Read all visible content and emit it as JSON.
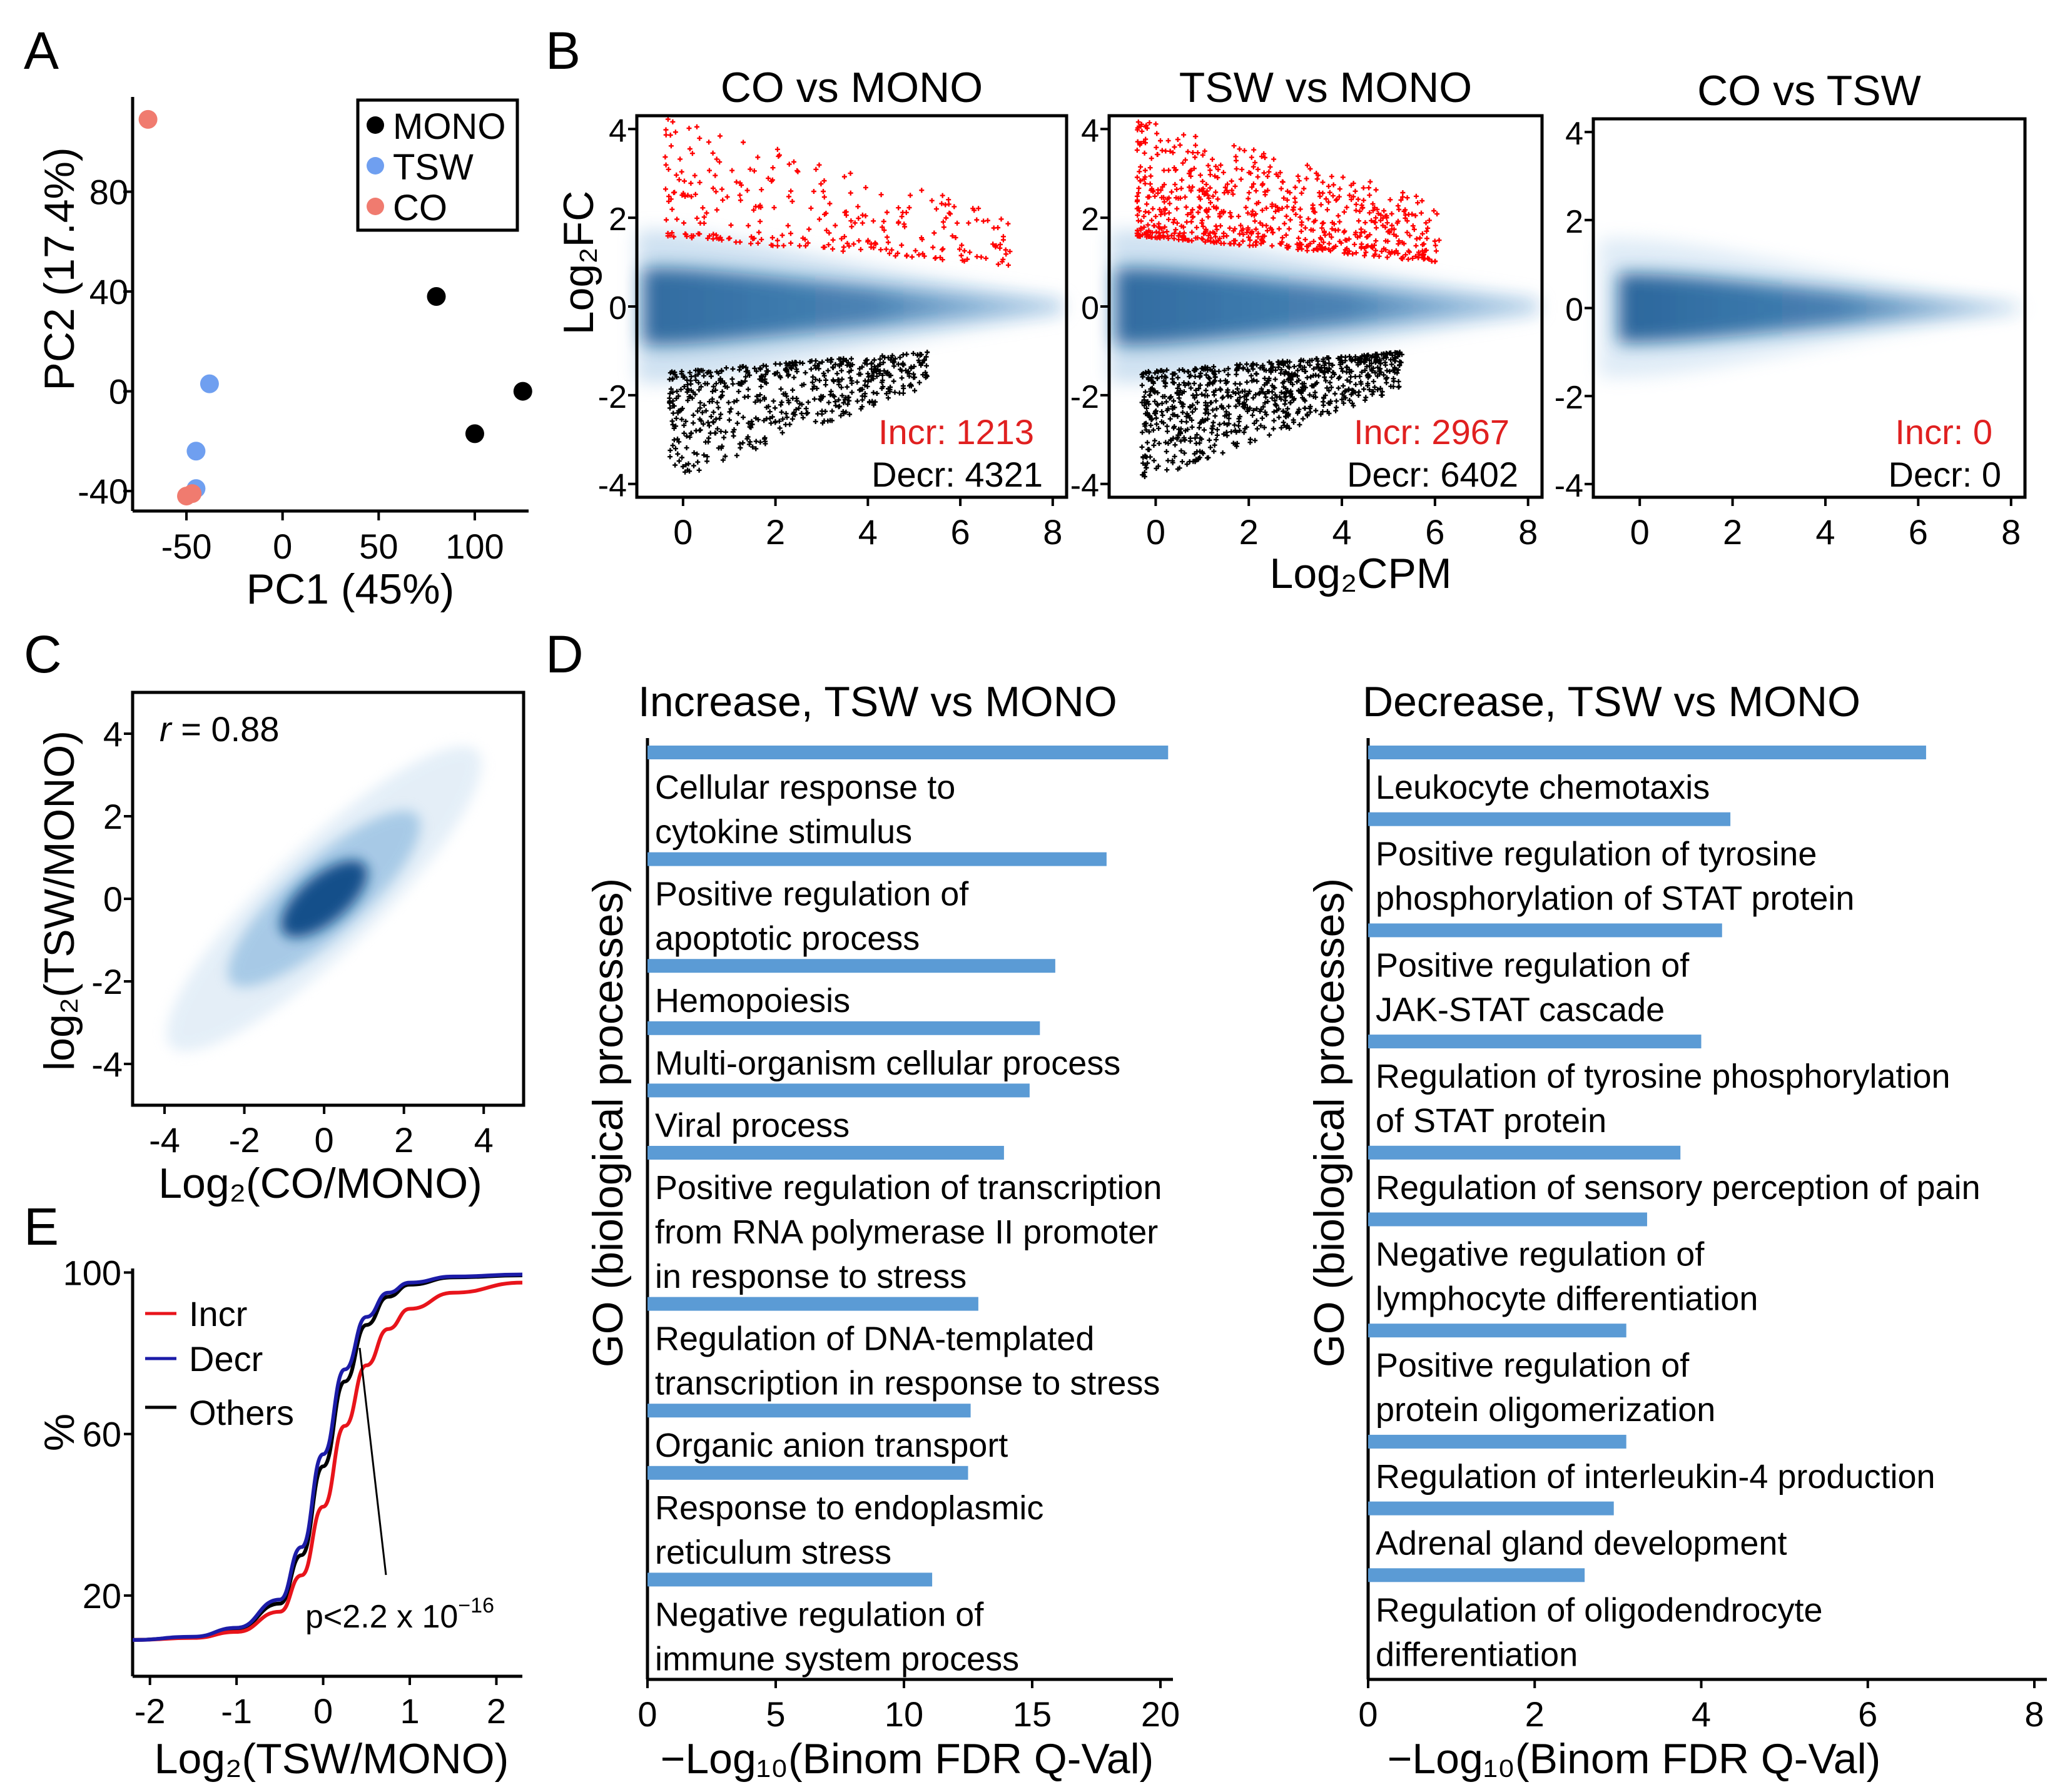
{
  "colors": {
    "mono": "#000000",
    "tsw": "#6f9ff0",
    "co": "#f07b6f",
    "incr": "#ff0000",
    "decr_pts": "#000000",
    "density": "#0a4f8a",
    "go_bar": "#5b9bd5",
    "curve_incr": "#e8141b",
    "curve_decr": "#1c1ca8",
    "incr_text": "#e02020"
  },
  "chart_data": [
    {
      "panel": "A",
      "type": "scatter",
      "xlabel": "PC1 (45%)",
      "ylabel": "PC2 (17.4%)",
      "xlim": [
        -78,
        128
      ],
      "ylim": [
        -48,
        118
      ],
      "xticks": [
        "-50",
        "0",
        "50",
        "100"
      ],
      "xtick_values": [
        -50,
        0,
        50,
        100
      ],
      "yticks": [
        "-40",
        "0",
        "40",
        "80"
      ],
      "ytick_values": [
        -40,
        0,
        40,
        80
      ],
      "legend": [
        "MONO",
        "TSW",
        "CO"
      ],
      "series": [
        {
          "name": "MONO",
          "points": [
            [
              80,
              38
            ],
            [
              125,
              0
            ],
            [
              100,
              -17
            ]
          ]
        },
        {
          "name": "TSW",
          "points": [
            [
              -38,
              3
            ],
            [
              -45,
              -24
            ],
            [
              -45,
              -39
            ]
          ]
        },
        {
          "name": "CO",
          "points": [
            [
              -70,
              109
            ],
            [
              -50,
              -42
            ],
            [
              -47,
              -41
            ]
          ]
        }
      ]
    },
    {
      "panel": "B",
      "type": "scatter",
      "xlabel": "Log₂CPM",
      "ylabel": "Log₂FC",
      "xlim": [
        -1,
        8.3
      ],
      "ylim": [
        -4.3,
        4.3
      ],
      "xticks": [
        "0",
        "2",
        "4",
        "6",
        "8"
      ],
      "xtick_values": [
        0,
        2,
        4,
        6,
        8
      ],
      "yticks": [
        "-4",
        "-2",
        "0",
        "2",
        "4"
      ],
      "ytick_values": [
        -4,
        -2,
        0,
        2,
        4
      ],
      "facets": [
        {
          "title": "CO vs MONO",
          "incr_label": "Incr: 1213",
          "decr_label": "Decr: 4321",
          "incr": 1213,
          "decr": 4321
        },
        {
          "title": "TSW vs MONO",
          "incr_label": "Incr: 2967",
          "decr_label": "Decr: 6402",
          "incr": 2967,
          "decr": 6402
        },
        {
          "title": "CO vs TSW",
          "incr_label": "Incr: 0",
          "decr_label": "Decr: 0",
          "incr": 0,
          "decr": 0
        }
      ]
    },
    {
      "panel": "C",
      "type": "heatmap",
      "annotation_r": "r",
      "annotation_val": "= 0.88",
      "r": 0.88,
      "xlabel": "Log₂(CO/MONO)",
      "ylabel": "log₂(TSW/MONO)",
      "xlim": [
        -4.8,
        5
      ],
      "ylim": [
        -5,
        5
      ],
      "xticks": [
        "-4",
        "-2",
        "0",
        "2",
        "4"
      ],
      "xtick_values": [
        -4,
        -2,
        0,
        2,
        4
      ],
      "yticks": [
        "-4",
        "-2",
        "0",
        "2",
        "4"
      ],
      "ytick_values": [
        -4,
        -2,
        0,
        2,
        4
      ]
    },
    {
      "panel": "D1",
      "type": "bar",
      "title": "Increase, TSW vs MONO",
      "ylabel": "GO (biological processes)",
      "xlabel": "−Log₁₀(Binom FDR Q-Val)",
      "xlim": [
        0,
        20
      ],
      "xticks": [
        "0",
        "5",
        "10",
        "15",
        "20"
      ],
      "xtick_values": [
        0,
        5,
        10,
        15,
        20
      ],
      "categories": [
        [
          "Cellular response to",
          "cytokine stimulus"
        ],
        [
          "Positive regulation of",
          "apoptotic process"
        ],
        [
          "Hemopoiesis"
        ],
        [
          "Multi-organism cellular process"
        ],
        [
          "Viral process"
        ],
        [
          "Positive regulation of transcription",
          "from RNA polymerase II promoter",
          "in response to stress"
        ],
        [
          "Regulation of DNA-templated",
          "transcription in response to stress"
        ],
        [
          "Organic anion transport"
        ],
        [
          "Response to endoplasmic",
          "reticulum stress"
        ],
        [
          "Negative regulation of",
          "immune system process"
        ]
      ],
      "values": [
        20.3,
        17.9,
        15.9,
        15.3,
        14.9,
        13.9,
        12.9,
        12.6,
        12.5,
        11.1
      ]
    },
    {
      "panel": "D2",
      "type": "bar",
      "title": "Decrease, TSW vs MONO",
      "ylabel": "GO (biological processes)",
      "xlabel": "−Log₁₀(Binom FDR Q-Val)",
      "xlim": [
        0,
        8
      ],
      "xticks": [
        "0",
        "2",
        "4",
        "6",
        "8"
      ],
      "xtick_values": [
        0,
        2,
        4,
        6,
        8
      ],
      "categories": [
        [
          "Leukocyte chemotaxis"
        ],
        [
          "Positive regulation of tyrosine",
          "phosphorylation of STAT protein"
        ],
        [
          "Positive regulation of",
          "JAK-STAT cascade"
        ],
        [
          "Regulation of tyrosine phosphorylation",
          "of STAT protein"
        ],
        [
          "Regulation of sensory perception of pain"
        ],
        [
          "Negative regulation of",
          "lymphocyte differentiation"
        ],
        [
          "Positive regulation of",
          "protein oligomerization"
        ],
        [
          "Regulation of interleukin-4 production"
        ],
        [
          "Adrenal gland development"
        ],
        [
          "Regulation of oligodendrocyte",
          "differentiation"
        ]
      ],
      "values": [
        6.7,
        4.35,
        4.25,
        4.0,
        3.75,
        3.35,
        3.1,
        3.1,
        2.95,
        2.6
      ]
    },
    {
      "panel": "E",
      "type": "line",
      "xlabel": "Log₂(TSW/MONO)",
      "ylabel": "%",
      "xlim": [
        -2.2,
        2.3
      ],
      "ylim": [
        0,
        101
      ],
      "xticks": [
        "-2",
        "-1",
        "0",
        "1",
        "2"
      ],
      "xtick_values": [
        -2,
        -1,
        0,
        1,
        2
      ],
      "yticks": [
        "20",
        "60",
        "100"
      ],
      "ytick_values": [
        20,
        60,
        100
      ],
      "legend": [
        "Incr",
        "Decr",
        "Others"
      ],
      "annotation": "p<2.2 x 10",
      "annotation_exp": "−16",
      "series": [
        {
          "name": "Incr",
          "x": [
            -2.2,
            -1.5,
            -1.0,
            -0.5,
            -0.25,
            0.0,
            0.25,
            0.5,
            0.75,
            1.0,
            1.5,
            2.3
          ],
          "y": [
            9,
            9.5,
            11,
            16,
            25,
            42,
            62,
            77,
            86,
            91,
            95,
            97.5
          ]
        },
        {
          "name": "Decr",
          "x": [
            -2.2,
            -1.5,
            -1.0,
            -0.5,
            -0.25,
            0.0,
            0.25,
            0.5,
            0.75,
            1.0,
            1.5,
            2.3
          ],
          "y": [
            9,
            9.8,
            12,
            19,
            32,
            55,
            76,
            89,
            95,
            97.5,
            99,
            99.5
          ]
        },
        {
          "name": "Others",
          "x": [
            -2.2,
            -1.5,
            -1.0,
            -0.5,
            -0.25,
            0.0,
            0.25,
            0.5,
            0.75,
            1.0,
            1.5,
            2.3
          ],
          "y": [
            9,
            9.7,
            11.8,
            18,
            30,
            52,
            73,
            87,
            94,
            97,
            98.8,
            99.3
          ]
        }
      ]
    }
  ],
  "panel_labels": [
    "A",
    "B",
    "C",
    "D",
    "E"
  ]
}
